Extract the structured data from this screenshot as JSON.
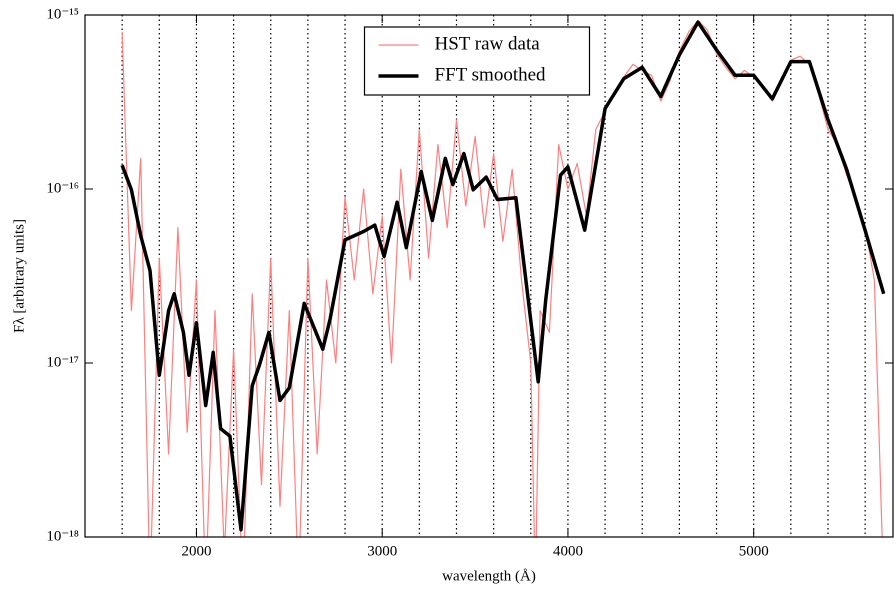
{
  "chart_data": {
    "type": "line",
    "xlabel": "wavelength (Å)",
    "ylabel": "Fλ [arbitrary units]",
    "xlim": [
      1400,
      5750
    ],
    "xticks": [
      2000,
      3000,
      4000,
      5000
    ],
    "ylim": [
      1e-18,
      1e-15
    ],
    "yscale": "log",
    "yticks": [
      {
        "value": 1e-18,
        "label": "10⁻¹⁸"
      },
      {
        "value": 1e-17,
        "label": "10⁻¹⁷"
      },
      {
        "value": 1e-16,
        "label": "10⁻¹⁶"
      },
      {
        "value": 1e-15,
        "label": "10⁻¹⁵"
      }
    ],
    "vlines": [
      1600,
      1800,
      2000,
      2200,
      2400,
      2600,
      2800,
      3000,
      3200,
      3400,
      3600,
      3800,
      4000,
      4200,
      4400,
      4600,
      4800,
      5000,
      5200,
      5400,
      5600
    ],
    "legend": "upper center",
    "series": [
      {
        "name": "HST raw data",
        "color": "#ff7f7f",
        "width": 1.2,
        "x": [
          1600,
          1650,
          1700,
          1750,
          1800,
          1850,
          1900,
          1950,
          2000,
          2050,
          2100,
          2150,
          2200,
          2250,
          2300,
          2350,
          2400,
          2450,
          2500,
          2550,
          2600,
          2650,
          2700,
          2750,
          2800,
          2850,
          2900,
          2950,
          3000,
          3050,
          3100,
          3150,
          3200,
          3250,
          3300,
          3350,
          3400,
          3450,
          3500,
          3550,
          3600,
          3650,
          3700,
          3750,
          3800,
          3825,
          3850,
          3900,
          3950,
          4000,
          4050,
          4100,
          4150,
          4200,
          4250,
          4300,
          4350,
          4400,
          4450,
          4500,
          4550,
          4600,
          4650,
          4700,
          4750,
          4800,
          4850,
          4900,
          4950,
          5000,
          5050,
          5100,
          5150,
          5200,
          5250,
          5300,
          5350,
          5400,
          5450,
          5500,
          5550,
          5600,
          5650,
          5700
        ],
        "values": [
          8e-16,
          2e-17,
          1.5e-16,
          5e-19,
          4e-17,
          3e-18,
          6e-17,
          4e-18,
          3e-17,
          5e-19,
          2e-17,
          8e-19,
          1.2e-17,
          5e-19,
          2.5e-17,
          2e-18,
          4e-17,
          1.5e-18,
          2e-17,
          5e-19,
          4e-17,
          3e-18,
          3e-17,
          1e-17,
          9e-17,
          3e-17,
          1e-16,
          2.5e-17,
          7e-17,
          1e-17,
          1.3e-16,
          3e-17,
          2.2e-16,
          4e-17,
          1.8e-16,
          6e-17,
          2.5e-16,
          8e-17,
          2e-16,
          6e-17,
          1.6e-16,
          5e-17,
          1.3e-16,
          3e-17,
          1e-17,
          5e-19,
          2e-17,
          1.5e-17,
          1.8e-16,
          1e-16,
          1.4e-16,
          7e-17,
          2.2e-16,
          2.8e-16,
          3.5e-16,
          4.4e-16,
          5.2e-16,
          4.8e-16,
          4.5e-16,
          3.2e-16,
          4.2e-16,
          6.2e-16,
          8e-16,
          9.3e-16,
          8.2e-16,
          6e-16,
          5e-16,
          4.3e-16,
          4.8e-16,
          4.4e-16,
          3.8e-16,
          3.2e-16,
          4.2e-16,
          5.5e-16,
          5.8e-16,
          5.2e-16,
          3.5e-16,
          2.2e-16,
          1.8e-16,
          1.2e-16,
          9e-17,
          6e-17,
          3e-17,
          5e-19
        ]
      },
      {
        "name": "FFT smoothed",
        "color": "#000000",
        "width": 3.5,
        "x": [
          1600,
          1650,
          1700,
          1750,
          1800,
          1850,
          1880,
          1930,
          1960,
          2000,
          2050,
          2090,
          2130,
          2180,
          2240,
          2300,
          2340,
          2390,
          2450,
          2500,
          2580,
          2680,
          2720,
          2800,
          2900,
          2960,
          3010,
          3080,
          3130,
          3210,
          3270,
          3340,
          3380,
          3440,
          3490,
          3560,
          3620,
          3720,
          3840,
          3880,
          3960,
          4000,
          4090,
          4200,
          4300,
          4400,
          4500,
          4600,
          4700,
          4800,
          4900,
          5000,
          5100,
          5200,
          5300,
          5400,
          5500,
          5600,
          5700
        ],
        "values": [
          1.37e-16,
          9.9e-17,
          5.4e-17,
          3.4e-17,
          8.5e-18,
          2e-17,
          2.5e-17,
          1.5e-17,
          8.5e-18,
          1.7e-17,
          5.7e-18,
          1.15e-17,
          4.2e-18,
          3.8e-18,
          1.1e-18,
          7.4e-18,
          9.8e-18,
          1.5e-17,
          6.1e-18,
          7.2e-18,
          2.2e-17,
          1.2e-17,
          1.8e-17,
          5.1e-17,
          5.7e-17,
          6.2e-17,
          4.1e-17,
          8.4e-17,
          4.6e-17,
          1.26e-16,
          6.6e-17,
          1.5e-16,
          1.06e-16,
          1.6e-16,
          9.9e-17,
          1.17e-16,
          8.7e-17,
          8.9e-17,
          7.8e-18,
          2.3e-17,
          1.2e-16,
          1.34e-16,
          5.8e-17,
          2.9e-16,
          4.3e-16,
          5e-16,
          3.4e-16,
          5.9e-16,
          9.1e-16,
          6.3e-16,
          4.5e-16,
          4.5e-16,
          3.3e-16,
          5.4e-16,
          5.4e-16,
          2.5e-16,
          1.3e-16,
          5.8e-17,
          2.5e-17
        ]
      }
    ]
  }
}
